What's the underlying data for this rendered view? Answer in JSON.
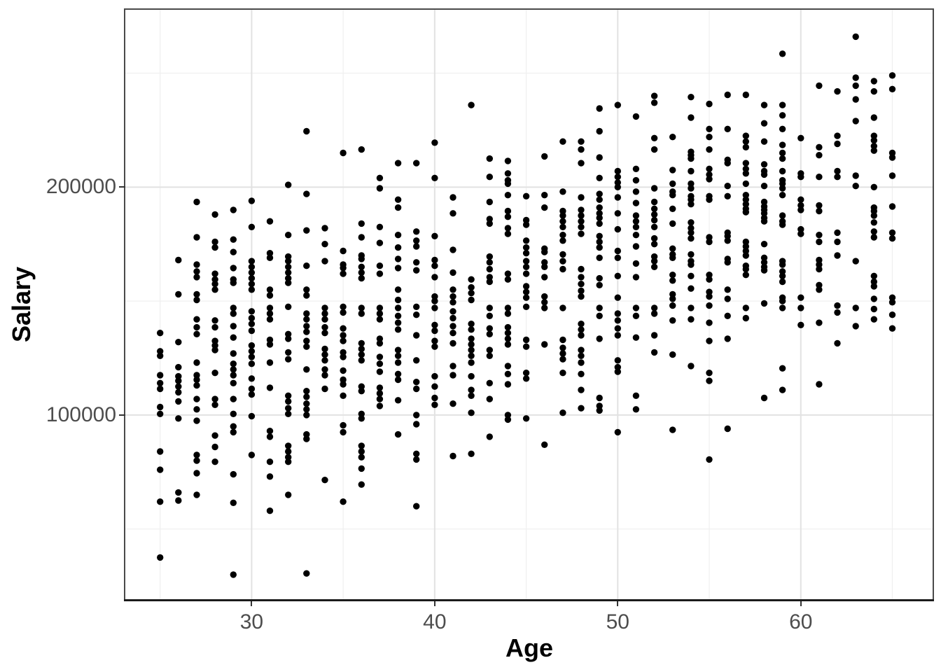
{
  "chart_data": {
    "type": "scatter",
    "title": "",
    "xlabel": "Age",
    "ylabel": "Salary",
    "x_ticks": [
      30,
      40,
      50,
      60
    ],
    "x_tick_labels": [
      "30",
      "40",
      "50",
      "60"
    ],
    "x_minor_ticks": [
      25,
      35,
      45,
      55,
      65
    ],
    "y_ticks": [
      100000,
      200000
    ],
    "y_tick_labels": [
      "100000",
      "200000"
    ],
    "y_minor_ticks": [
      50000,
      150000,
      250000
    ],
    "xlim": [
      23.1,
      67.2
    ],
    "ylim": [
      18900,
      277800
    ],
    "grid": true,
    "legend_position": "none",
    "point_color": "#000000",
    "point_radius": 4.7,
    "colors": {
      "background": "#FFFFFF",
      "panel_background": "#FFFFFF",
      "grid_major": "#E2E2E2",
      "grid_minor": "#F0F0F0",
      "panel_border": "#4A4A4A",
      "axis_line": "#1C1C1C",
      "tick_mark": "#333333",
      "tick_label": "#4D4D4D",
      "axis_title": "#000000"
    },
    "series": [
      {
        "age": 25,
        "salaries": [
          136000,
          128000,
          126000,
          117500,
          114000,
          111500,
          103500,
          100500,
          84000,
          76000,
          62000,
          37500
        ]
      },
      {
        "age": 26,
        "salaries": [
          168000,
          153000,
          132000,
          121000,
          117000,
          115000,
          112500,
          110000,
          106000,
          98500,
          66000,
          62500
        ]
      },
      {
        "age": 27,
        "salaries": [
          193500,
          178000,
          166000,
          163000,
          160500,
          153000,
          150500,
          142000,
          138500,
          135500,
          123000,
          117500,
          115500,
          113000,
          107000,
          102500,
          97500,
          82500,
          80000,
          74500,
          65000
        ]
      },
      {
        "age": 28,
        "salaries": [
          188000,
          176000,
          173500,
          162000,
          159500,
          157500,
          155000,
          141500,
          138500,
          132500,
          130500,
          128500,
          118500,
          107000,
          104500,
          91000,
          86000,
          79500
        ]
      },
      {
        "age": 29,
        "salaries": [
          190000,
          177000,
          171500,
          164500,
          159500,
          158000,
          147000,
          144500,
          139000,
          134000,
          127000,
          122500,
          120000,
          117500,
          114000,
          107000,
          100500,
          95000,
          92500,
          74000,
          61500,
          30000
        ]
      },
      {
        "age": 30,
        "salaries": [
          194000,
          182500,
          167500,
          165000,
          162500,
          160000,
          157500,
          155000,
          145500,
          142500,
          140000,
          137000,
          130500,
          128000,
          125500,
          122500,
          116000,
          111500,
          109000,
          99500,
          82500
        ]
      },
      {
        "age": 31,
        "salaries": [
          185000,
          171000,
          169000,
          155000,
          152500,
          147000,
          144500,
          142000,
          133000,
          131000,
          123000,
          112000,
          93000,
          90500,
          79500,
          73000,
          58000
        ]
      },
      {
        "age": 32,
        "salaries": [
          201000,
          179000,
          169500,
          167500,
          165000,
          162500,
          160000,
          158000,
          147500,
          135500,
          133500,
          127500,
          124500,
          108500,
          106000,
          103000,
          100500,
          86500,
          84000,
          81500,
          79500,
          65000
        ]
      },
      {
        "age": 33,
        "salaries": [
          224500,
          197000,
          181000,
          165500,
          155000,
          152500,
          144500,
          142000,
          139000,
          136500,
          132500,
          130000,
          120000,
          110500,
          108000,
          105000,
          102500,
          100000,
          91500,
          89500,
          30500
        ]
      },
      {
        "age": 34,
        "salaries": [
          182000,
          175000,
          167500,
          147000,
          144500,
          142000,
          138500,
          136000,
          129000,
          126500,
          124000,
          120000,
          117500,
          111500,
          71500
        ]
      },
      {
        "age": 35,
        "salaries": [
          215000,
          172000,
          166000,
          164500,
          162000,
          147500,
          145000,
          138000,
          135000,
          132500,
          127500,
          125500,
          119500,
          115500,
          113500,
          108500,
          95500,
          92500,
          62000
        ]
      },
      {
        "age": 36,
        "salaries": [
          216500,
          184000,
          178000,
          170000,
          168500,
          165000,
          162500,
          160000,
          147000,
          144500,
          131500,
          129000,
          126500,
          124000,
          112500,
          110500,
          100500,
          98500,
          86500,
          84000,
          81500,
          76500,
          69500
        ]
      },
      {
        "age": 37,
        "salaries": [
          204000,
          199500,
          182500,
          175500,
          165500,
          162000,
          147000,
          144500,
          142000,
          133500,
          131500,
          125500,
          122500,
          119000,
          112000,
          109500,
          107000,
          104000
        ]
      },
      {
        "age": 38,
        "salaries": [
          210500,
          194500,
          191000,
          179000,
          173500,
          168500,
          164500,
          155000,
          150500,
          147000,
          143500,
          140500,
          137500,
          128500,
          126000,
          123000,
          118000,
          115500,
          106500,
          91500
        ]
      },
      {
        "age": 39,
        "salaries": [
          210500,
          180500,
          176500,
          174000,
          167000,
          163500,
          147500,
          144000,
          135000,
          124000,
          114500,
          111500,
          100000,
          96000,
          83000,
          80500,
          60000
        ]
      },
      {
        "age": 40,
        "salaries": [
          219500,
          204000,
          178500,
          168000,
          165500,
          160500,
          152000,
          150000,
          147000,
          139500,
          137000,
          132500,
          130000,
          117000,
          112500,
          107500,
          104500
        ]
      },
      {
        "age": 41,
        "salaries": [
          195500,
          188500,
          172500,
          162500,
          155000,
          152000,
          149500,
          145500,
          142500,
          139000,
          136000,
          131500,
          121500,
          117500,
          105000,
          82000
        ]
      },
      {
        "age": 42,
        "salaries": [
          236000,
          159500,
          156000,
          153500,
          150500,
          140000,
          137500,
          133500,
          131000,
          128500,
          126000,
          123000,
          117000,
          111000,
          108500,
          101000,
          83000
        ]
      },
      {
        "age": 43,
        "salaries": [
          212500,
          204500,
          193500,
          186000,
          184000,
          169500,
          167000,
          164000,
          160500,
          158500,
          147000,
          143500,
          138000,
          135500,
          128500,
          126000,
          114000,
          107000,
          90500
        ]
      },
      {
        "age": 44,
        "salaries": [
          211500,
          206000,
          203000,
          201500,
          196500,
          189500,
          187000,
          182000,
          179500,
          162000,
          159500,
          147000,
          144500,
          138500,
          136000,
          133500,
          131000,
          121500,
          118000,
          113500,
          100000,
          98000
        ]
      },
      {
        "age": 45,
        "salaries": [
          196000,
          185500,
          183500,
          176500,
          173500,
          171000,
          167500,
          165000,
          162000,
          156500,
          154000,
          151500,
          147500,
          133000,
          130000,
          118500,
          116000,
          98500
        ]
      },
      {
        "age": 46,
        "salaries": [
          213500,
          196500,
          191000,
          173000,
          171500,
          167000,
          165000,
          160500,
          152000,
          149500,
          147000,
          131000,
          87000
        ]
      },
      {
        "age": 47,
        "salaries": [
          220000,
          198000,
          189500,
          187500,
          185000,
          182500,
          179000,
          176500,
          170500,
          167500,
          164000,
          147000,
          133000,
          129500,
          127000,
          124500,
          118500,
          101000
        ]
      },
      {
        "age": 48,
        "salaries": [
          220000,
          216500,
          210500,
          195500,
          190000,
          187500,
          185000,
          182500,
          179500,
          164000,
          160500,
          157500,
          154500,
          152000,
          140000,
          137500,
          135000,
          128500,
          126000,
          123000,
          118000,
          111000,
          103000
        ]
      },
      {
        "age": 49,
        "salaries": [
          234500,
          224500,
          213000,
          204000,
          197000,
          194500,
          191000,
          188500,
          186500,
          184000,
          178500,
          176000,
          173500,
          169000,
          160000,
          157000,
          147000,
          143500,
          133500,
          107500,
          104000,
          102000
        ]
      },
      {
        "age": 50,
        "salaries": [
          236000,
          207000,
          204500,
          202000,
          200000,
          195500,
          188500,
          181500,
          172000,
          169000,
          161000,
          151500,
          144500,
          141500,
          138000,
          135000,
          124000,
          121000,
          119000,
          92500
        ]
      },
      {
        "age": 51,
        "salaries": [
          231000,
          208000,
          203000,
          198000,
          193000,
          187500,
          185000,
          182500,
          179000,
          174000,
          166500,
          160500,
          147000,
          143500,
          134000,
          108500,
          102500
        ]
      },
      {
        "age": 52,
        "salaries": [
          240000,
          237000,
          221500,
          216500,
          199500,
          193500,
          190500,
          188000,
          185500,
          182500,
          177500,
          175000,
          169500,
          167500,
          165000,
          147000,
          144500,
          135000,
          127500
        ]
      },
      {
        "age": 53,
        "salaries": [
          222000,
          207500,
          201500,
          198000,
          196500,
          190500,
          184000,
          173000,
          170500,
          169000,
          161500,
          159000,
          153000,
          151000,
          148000,
          141500,
          126500,
          93500
        ]
      },
      {
        "age": 54,
        "salaries": [
          239500,
          230500,
          215500,
          214000,
          212500,
          207000,
          201500,
          199500,
          196000,
          194500,
          192500,
          184500,
          182000,
          180000,
          177500,
          170500,
          167500,
          166000,
          161000,
          155500,
          147000,
          142000,
          121500
        ]
      },
      {
        "age": 55,
        "salaries": [
          236500,
          225500,
          222000,
          216500,
          208000,
          205500,
          203500,
          196000,
          194500,
          178000,
          176000,
          161500,
          159500,
          154000,
          152000,
          148000,
          140500,
          132500,
          118500,
          115000,
          80500
        ]
      },
      {
        "age": 56,
        "salaries": [
          240500,
          225500,
          212000,
          210500,
          200500,
          196000,
          180000,
          178500,
          176500,
          168500,
          167000,
          155000,
          151000,
          143500,
          133500,
          94000
        ]
      },
      {
        "age": 57,
        "salaries": [
          240500,
          222500,
          220000,
          217500,
          210500,
          208000,
          206000,
          201500,
          196500,
          194500,
          192500,
          190500,
          189000,
          176000,
          174000,
          172000,
          170000,
          165500,
          164000,
          161500,
          147000,
          142500
        ]
      },
      {
        "age": 58,
        "salaries": [
          236000,
          228000,
          220000,
          210000,
          207000,
          205500,
          200500,
          193500,
          191500,
          190000,
          188500,
          186500,
          185000,
          175000,
          169000,
          167000,
          165000,
          163500,
          149000,
          107500
        ]
      },
      {
        "age": 59,
        "salaries": [
          258500,
          236000,
          231500,
          225500,
          218500,
          215000,
          212500,
          207000,
          203000,
          201500,
          199500,
          196500,
          187500,
          185000,
          183500,
          167500,
          166000,
          163000,
          161000,
          158500,
          151500,
          150000,
          147000,
          120500,
          111000
        ]
      },
      {
        "age": 60,
        "salaries": [
          221500,
          206000,
          204500,
          194500,
          192000,
          190000,
          181500,
          179500,
          151500,
          147000,
          139500
        ]
      },
      {
        "age": 61,
        "salaries": [
          244500,
          217500,
          214000,
          204500,
          192000,
          189500,
          179000,
          176000,
          168000,
          166000,
          164000,
          157000,
          155000,
          140500,
          113500
        ]
      },
      {
        "age": 62,
        "salaries": [
          242000,
          222500,
          219000,
          207000,
          204500,
          180000,
          176000,
          170000,
          148000,
          145000,
          131500
        ]
      },
      {
        "age": 63,
        "salaries": [
          266000,
          248000,
          244500,
          238500,
          229000,
          205000,
          200500,
          167500,
          147000,
          139000
        ]
      },
      {
        "age": 64,
        "salaries": [
          246500,
          242000,
          230500,
          222500,
          220500,
          218000,
          216000,
          200000,
          191000,
          189500,
          187500,
          184500,
          180500,
          178000,
          161000,
          158500,
          156500,
          151000,
          146500,
          142000
        ]
      },
      {
        "age": 65,
        "salaries": [
          249000,
          243000,
          215000,
          213000,
          205000,
          191500,
          180000,
          177500,
          151500,
          149500,
          144000,
          138000
        ]
      }
    ]
  }
}
